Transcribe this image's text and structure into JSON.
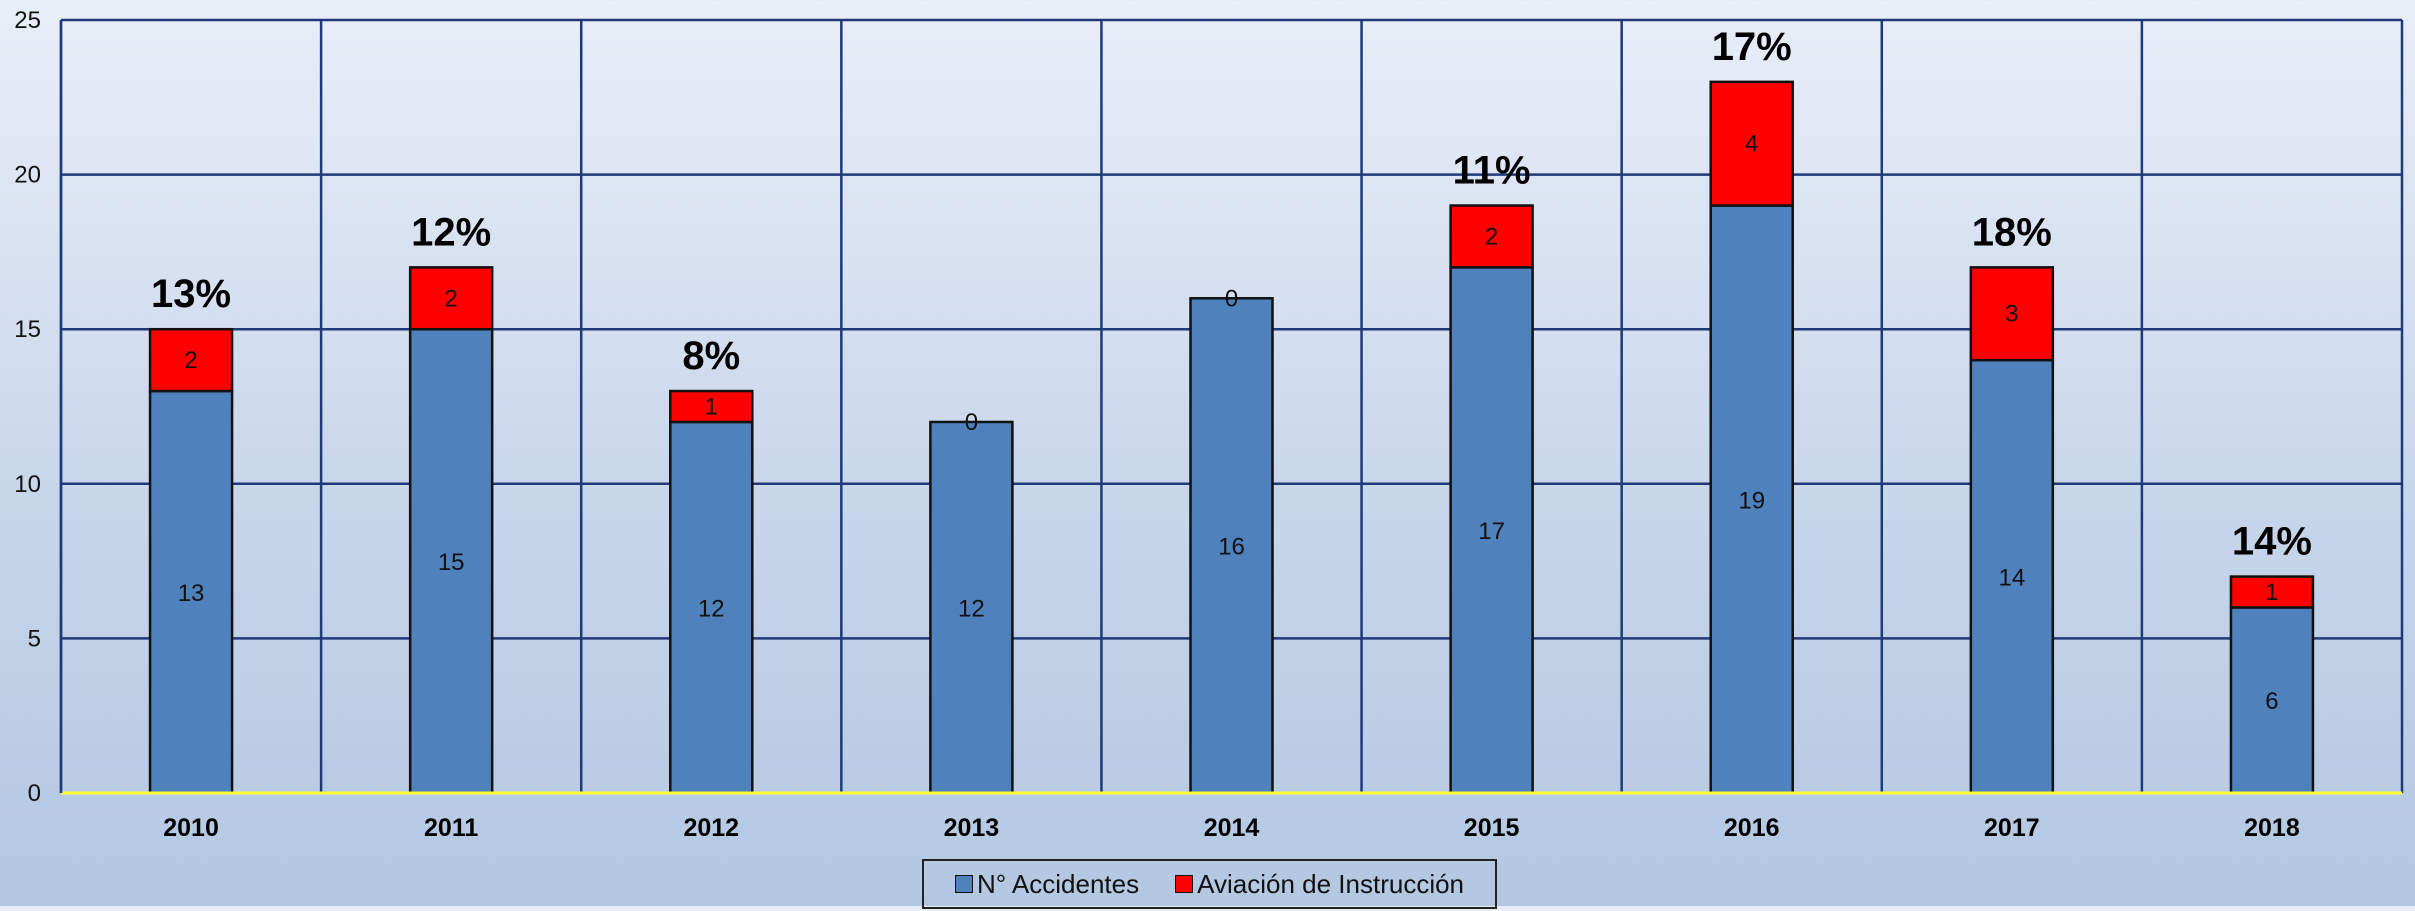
{
  "chart_data": {
    "type": "bar",
    "stacked": true,
    "categories": [
      "2010",
      "2011",
      "2012",
      "2013",
      "2014",
      "2015",
      "2016",
      "2017",
      "2018"
    ],
    "series": [
      {
        "name": "N° Accidentes",
        "values": [
          13,
          15,
          12,
          12,
          16,
          17,
          19,
          14,
          6
        ],
        "color": "#4f81bd"
      },
      {
        "name": "Aviación de Instrucción",
        "values": [
          2,
          2,
          1,
          0,
          0,
          2,
          4,
          3,
          1
        ],
        "color": "#ff0000"
      }
    ],
    "top_labels": [
      "13%",
      "12%",
      "8%",
      "",
      "",
      "11%",
      "17%",
      "18%",
      "14%"
    ],
    "ylim": [
      0,
      25
    ],
    "yticks": [
      0,
      5,
      10,
      15,
      20,
      25
    ],
    "grid": true,
    "legend": "bottom",
    "title": "",
    "xlabel": "",
    "ylabel": ""
  }
}
